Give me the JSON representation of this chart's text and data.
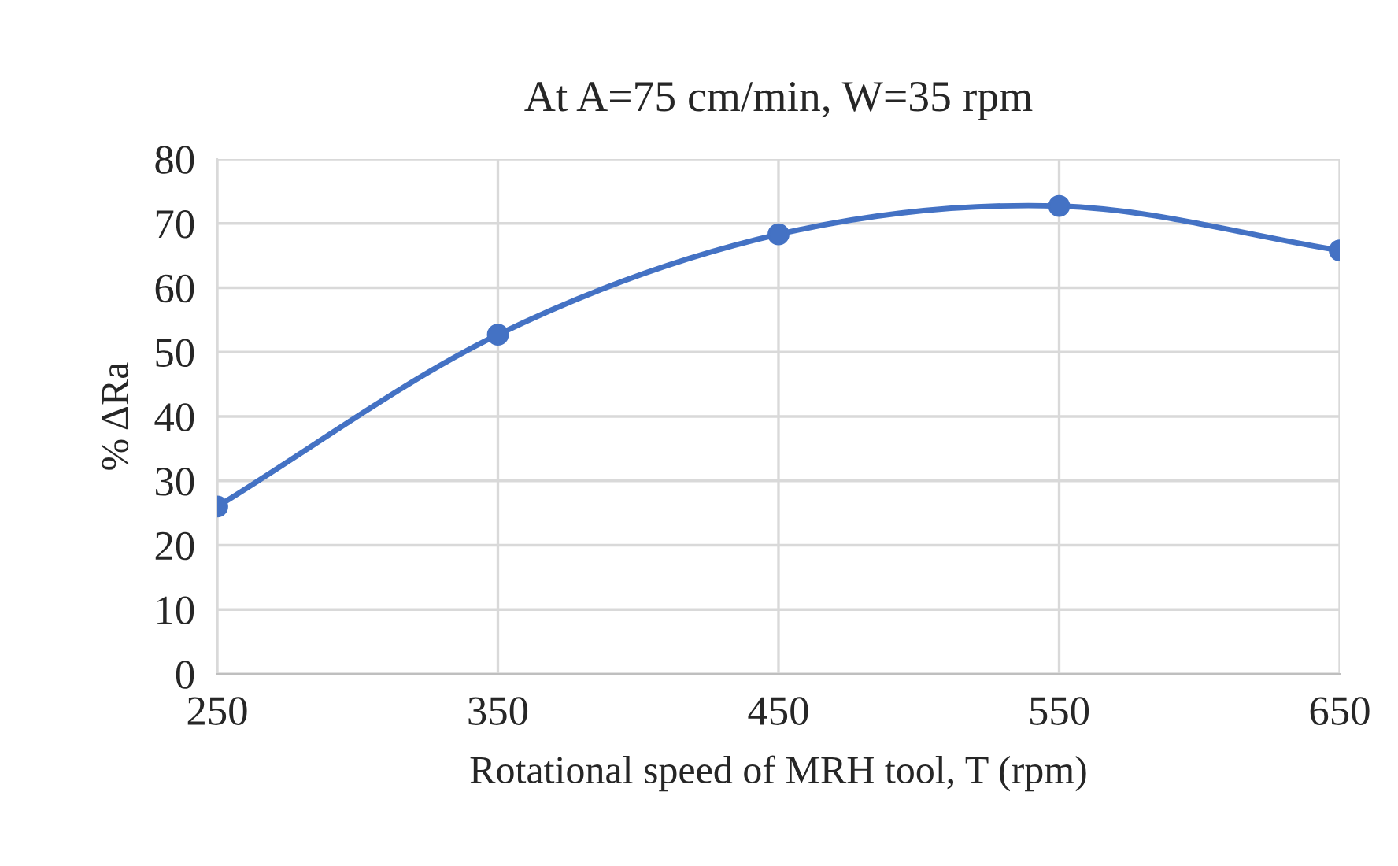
{
  "chart_data": {
    "type": "line",
    "title": "At A=75 cm/min, W=35 rpm",
    "xlabel": "Rotational speed of MRH tool, T (rpm)",
    "ylabel": "% ΔRa",
    "x": [
      250,
      350,
      450,
      550,
      650
    ],
    "series": [
      {
        "color": "#4472c4",
        "values": [
          26.0,
          52.7,
          68.3,
          72.7,
          65.8
        ]
      }
    ],
    "xlim": [
      250,
      650
    ],
    "xticks": [
      250,
      350,
      450,
      550,
      650
    ],
    "ylim": [
      0,
      80
    ],
    "yticks": [
      0,
      10,
      20,
      30,
      40,
      50,
      60,
      70,
      80
    ],
    "grid": true,
    "marker": "circle",
    "line_style": "solid"
  }
}
